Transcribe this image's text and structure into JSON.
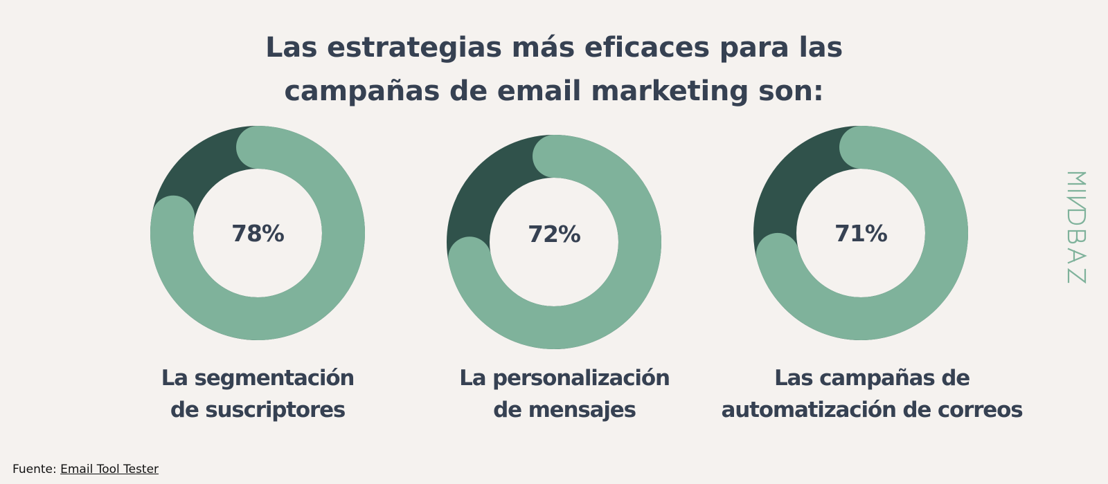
{
  "title": {
    "line1": "Las estrategias más eficaces para las",
    "line2": "campañas de email marketing son:"
  },
  "chart_data": {
    "type": "donut",
    "title": "Las estrategias más eficaces para las campañas de email marketing son:",
    "colors": {
      "value": "#7fb29b",
      "remainder": "#30524b",
      "text": "#364152",
      "background": "#f5f2ef"
    },
    "items": [
      {
        "value": 78,
        "label": "78%",
        "caption": [
          "La segmentación",
          "de suscriptores"
        ]
      },
      {
        "value": 72,
        "label": "72%",
        "caption": [
          "La personalización",
          "de mensajes"
        ]
      },
      {
        "value": 71,
        "label": "71%",
        "caption": [
          "Las campañas de",
          "automatización de correos"
        ]
      }
    ]
  },
  "brand": {
    "text": "MINDBAZ",
    "color": "#7fb29b"
  },
  "source": {
    "prefix": "Fuente: ",
    "link_text": "Email Tool Tester"
  }
}
